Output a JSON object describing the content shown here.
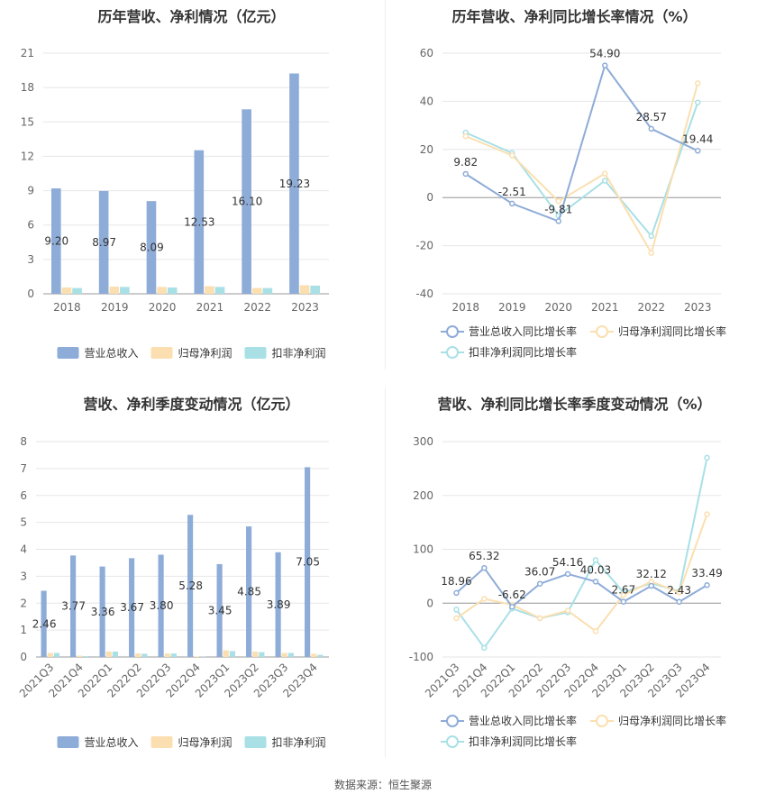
{
  "source_label": "数据来源：恒生聚源",
  "charts": {
    "annual_amount": {
      "title": "历年营收、净利情况（亿元）",
      "legend": [
        "营业总收入",
        "归母净利润",
        "扣非净利润"
      ]
    },
    "annual_growth": {
      "title": "历年营收、净利同比增长率情况（%）",
      "legend": [
        "营业总收入同比增长率",
        "归母净利润同比增长率",
        "扣非净利润同比增长率"
      ]
    },
    "quarter_amount": {
      "title": "营收、净利季度变动情况（亿元）",
      "legend": [
        "营业总收入",
        "归母净利润",
        "扣非净利润"
      ]
    },
    "quarter_growth": {
      "title": "营收、净利同比增长率季度变动情况（%）",
      "legend": [
        "营业总收入同比增长率",
        "归母净利润同比增长率",
        "扣非净利润同比增长率"
      ]
    }
  },
  "chart_data": [
    {
      "type": "bar",
      "title": "历年营收、净利情况（亿元）",
      "categories": [
        "2018",
        "2019",
        "2020",
        "2021",
        "2022",
        "2023"
      ],
      "ylim": [
        0,
        21
      ],
      "yticks": [
        0,
        3,
        6,
        9,
        12,
        15,
        18,
        21
      ],
      "grid": true,
      "legend_position": "bottom",
      "labeled_series": 0,
      "series": [
        {
          "name": "营业总收入",
          "color": "#8eacd8",
          "values": [
            9.2,
            8.97,
            8.09,
            12.53,
            16.1,
            19.23
          ]
        },
        {
          "name": "归母净利润",
          "color": "#fbdfb0",
          "values": [
            0.55,
            0.62,
            0.6,
            0.66,
            0.51,
            0.75
          ]
        },
        {
          "name": "扣非净利润",
          "color": "#a8e0e6",
          "values": [
            0.5,
            0.6,
            0.55,
            0.6,
            0.5,
            0.71
          ]
        }
      ]
    },
    {
      "type": "line",
      "title": "历年营收、净利同比增长率情况（%）",
      "categories": [
        "2018",
        "2019",
        "2020",
        "2021",
        "2022",
        "2023"
      ],
      "ylim": [
        -40,
        60
      ],
      "yticks": [
        -40,
        -20,
        0,
        20,
        40,
        60
      ],
      "grid": true,
      "legend_position": "bottom",
      "labeled_series": 0,
      "series": [
        {
          "name": "营业总收入同比增长率",
          "color": "#8eacd8",
          "values": [
            9.82,
            -2.51,
            -9.81,
            54.9,
            28.57,
            19.44
          ]
        },
        {
          "name": "归母净利润同比增长率",
          "color": "#fbdfb0",
          "values": [
            25.5,
            17.5,
            -1.5,
            10.0,
            -23.0,
            47.5
          ]
        },
        {
          "name": "扣非净利润同比增长率",
          "color": "#a8e0e6",
          "values": [
            27.0,
            18.5,
            -7.5,
            7.0,
            -16.0,
            39.5
          ]
        }
      ]
    },
    {
      "type": "bar",
      "title": "营收、净利季度变动情况（亿元）",
      "categories": [
        "2021Q3",
        "2021Q4",
        "2022Q1",
        "2022Q2",
        "2022Q3",
        "2022Q4",
        "2023Q1",
        "2023Q2",
        "2023Q3",
        "2023Q4"
      ],
      "ylim": [
        0,
        8
      ],
      "yticks": [
        0,
        1,
        2,
        3,
        4,
        5,
        6,
        7,
        8
      ],
      "grid": true,
      "legend_position": "bottom",
      "labeled_series": 0,
      "series": [
        {
          "name": "营业总收入",
          "color": "#8eacd8",
          "values": [
            2.46,
            3.77,
            3.36,
            3.67,
            3.8,
            5.28,
            3.45,
            4.85,
            3.89,
            7.05
          ]
        },
        {
          "name": "归母净利润",
          "color": "#fbdfb0",
          "values": [
            0.15,
            0.05,
            0.2,
            0.13,
            0.13,
            0.02,
            0.25,
            0.2,
            0.15,
            0.12
          ]
        },
        {
          "name": "扣非净利润",
          "color": "#a8e0e6",
          "values": [
            0.15,
            0.03,
            0.2,
            0.12,
            0.13,
            0.01,
            0.22,
            0.18,
            0.15,
            0.08
          ]
        }
      ]
    },
    {
      "type": "line",
      "title": "营收、净利同比增长率季度变动情况（%）",
      "categories": [
        "2021Q3",
        "2021Q4",
        "2022Q1",
        "2022Q2",
        "2022Q3",
        "2022Q4",
        "2023Q1",
        "2023Q2",
        "2023Q3",
        "2023Q4"
      ],
      "ylim": [
        -100,
        300
      ],
      "yticks": [
        -100,
        0,
        100,
        200,
        300
      ],
      "grid": true,
      "legend_position": "bottom",
      "labeled_series": 0,
      "series": [
        {
          "name": "营业总收入同比增长率",
          "color": "#8eacd8",
          "values": [
            18.96,
            65.32,
            -6.62,
            36.07,
            54.16,
            40.03,
            2.67,
            32.12,
            2.43,
            33.49
          ]
        },
        {
          "name": "归母净利润同比增长率",
          "color": "#fbdfb0",
          "values": [
            -28,
            8,
            -3,
            -28,
            -14,
            -52,
            15,
            40,
            20,
            165
          ]
        },
        {
          "name": "扣非净利润同比增长率",
          "color": "#a8e0e6",
          "values": [
            -12,
            -83,
            -10,
            -28,
            -17,
            80,
            20,
            37,
            22,
            270
          ]
        }
      ]
    }
  ]
}
